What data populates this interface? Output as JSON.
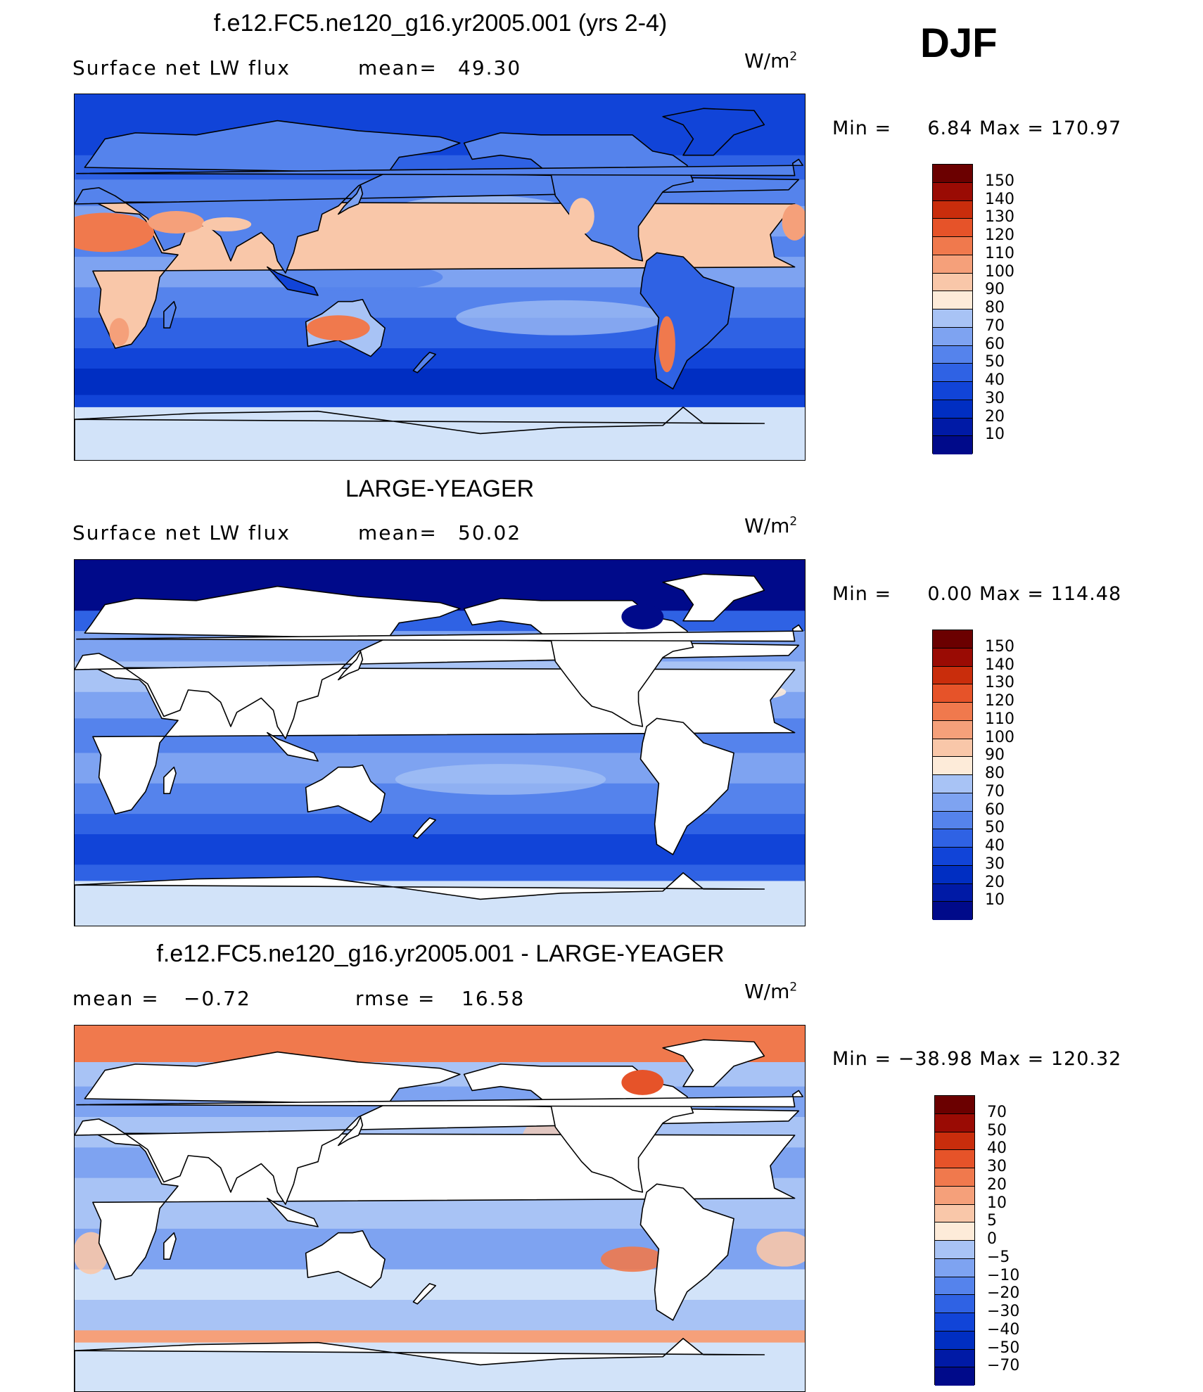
{
  "season": "DJF",
  "colors": {
    "fill_scale": [
      "#000a8a",
      "#001aa6",
      "#002ec2",
      "#1144d8",
      "#2f62e4",
      "#5583ec",
      "#7ea3f1",
      "#a8c3f5",
      "#d2e3f9",
      "#fdebd9",
      "#f9c7a9",
      "#f5a07a",
      "#f0794d",
      "#e65329",
      "#c92d0c",
      "#9a0b04",
      "#6b0000"
    ],
    "land": "#ffffff",
    "coastline": "#000000"
  },
  "panels": [
    {
      "title": "f.e12.FC5.ne120_g16.yr2005.001 (yrs 2-4)",
      "left_label": "Surface net LW flux",
      "stat_label": "mean=",
      "stat_value": "49.30",
      "stat2_label": "",
      "stat2_value": "",
      "units": "W/m",
      "units_exp": "2",
      "min_label": "Min =",
      "min_value": "6.84",
      "max_label": "Max =",
      "max_value": "170.97",
      "levels": [
        "10",
        "20",
        "30",
        "40",
        "50",
        "60",
        "70",
        "80",
        "90",
        "100",
        "110",
        "120",
        "130",
        "140",
        "150"
      ],
      "field": "model"
    },
    {
      "title": "LARGE-YEAGER",
      "left_label": "Surface net LW flux",
      "stat_label": "mean=",
      "stat_value": "50.02",
      "stat2_label": "",
      "stat2_value": "",
      "units": "W/m",
      "units_exp": "2",
      "min_label": "Min =",
      "min_value": "0.00",
      "max_label": "Max =",
      "max_value": "114.48",
      "levels": [
        "10",
        "20",
        "30",
        "40",
        "50",
        "60",
        "70",
        "80",
        "90",
        "100",
        "110",
        "120",
        "130",
        "140",
        "150"
      ],
      "field": "obs"
    },
    {
      "title": "f.e12.FC5.ne120_g16.yr2005.001 - LARGE-YEAGER",
      "left_label": "mean =",
      "stat_label": "",
      "stat_value": "−0.72",
      "stat2_label": "rmse =",
      "stat2_value": "16.58",
      "units": "W/m",
      "units_exp": "2",
      "min_label": "Min =",
      "min_value": "−38.98",
      "max_label": "Max =",
      "max_value": "120.32",
      "levels": [
        "−70",
        "−50",
        "−40",
        "−30",
        "−20",
        "−10",
        "−5",
        "0",
        "5",
        "10",
        "20",
        "30",
        "40",
        "50",
        "70"
      ],
      "field": "diff"
    }
  ]
}
